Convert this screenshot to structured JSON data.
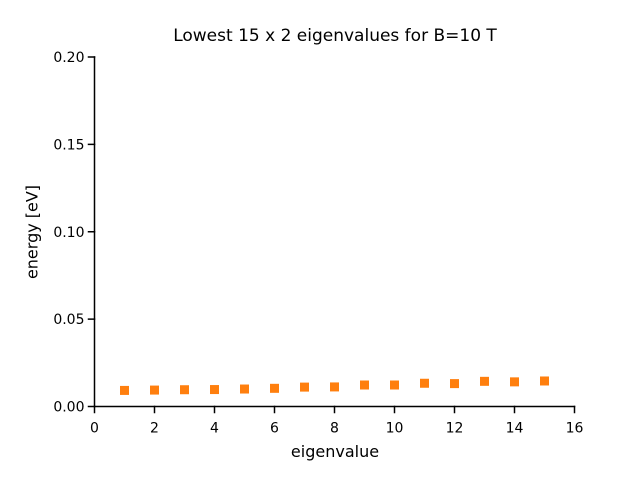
{
  "chart_data": {
    "type": "scatter",
    "title": "Lowest 15 x 2 eigenvalues for B=10 T",
    "xlabel": "eigenvalue",
    "ylabel": "energy [eV]",
    "xlim": [
      0,
      16
    ],
    "ylim": [
      0.0,
      0.2
    ],
    "xticks": [
      0,
      2,
      4,
      6,
      8,
      10,
      12,
      14,
      16
    ],
    "ytick_labels": [
      "0.00",
      "0.05",
      "0.10",
      "0.15",
      "0.20"
    ],
    "grid": false,
    "legend": "none",
    "spines": [
      "left",
      "bottom"
    ],
    "tick_direction": "out",
    "marker": "square",
    "marker_size_px": 9,
    "marker_color": "#ff7f0e",
    "axis_color": "#000000",
    "background_color": "#ffffff",
    "points_per_marker": 2,
    "x": [
      1,
      2,
      3,
      4,
      5,
      6,
      7,
      8,
      9,
      10,
      11,
      12,
      13,
      14,
      15
    ],
    "y": [
      0.0092,
      0.0094,
      0.0096,
      0.0097,
      0.01,
      0.0104,
      0.0111,
      0.0112,
      0.0123,
      0.0123,
      0.0133,
      0.0131,
      0.0144,
      0.0141,
      0.0146
    ]
  }
}
